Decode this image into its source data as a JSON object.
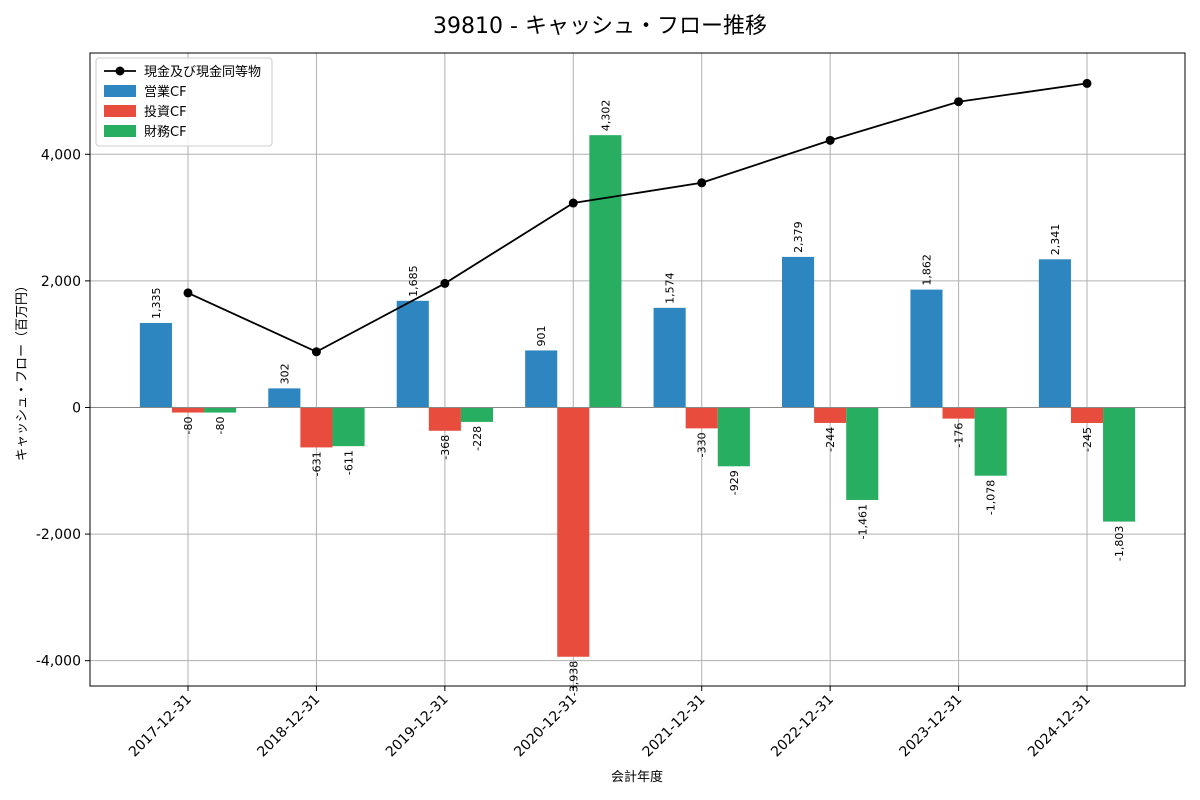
{
  "chart_data": {
    "type": "bar",
    "title": "39810 - キャッシュ・フロー推移",
    "xlabel": "会計年度",
    "ylabel": "キャッシュ・フロー（百万円）",
    "categories": [
      "2017-12-31",
      "2018-12-31",
      "2019-12-31",
      "2020-12-31",
      "2021-12-31",
      "2022-12-31",
      "2023-12-31",
      "2024-12-31"
    ],
    "ylim": [
      -4400,
      5600
    ],
    "yticks": [
      -4000,
      -2000,
      0,
      2000,
      4000
    ],
    "ytick_labels": [
      "-4,000",
      "-2,000",
      "0",
      "2,000",
      "4,000"
    ],
    "grid": true,
    "legend_position": "top-left",
    "series": [
      {
        "name": "営業CF",
        "kind": "bar",
        "color": "#2e86c1",
        "values": [
          1335,
          302,
          1685,
          901,
          1574,
          2379,
          1862,
          2341
        ],
        "labels": [
          "1,335",
          "302",
          "1,685",
          "901",
          "1,574",
          "2,379",
          "1,862",
          "2,341"
        ]
      },
      {
        "name": "投資CF",
        "kind": "bar",
        "color": "#e74c3c",
        "values": [
          -80,
          -631,
          -368,
          -3938,
          -330,
          -244,
          -176,
          -245
        ],
        "labels": [
          "-80",
          "-631",
          "-368",
          "-3,938",
          "-330",
          "-244",
          "-176",
          "-245"
        ]
      },
      {
        "name": "財務CF",
        "kind": "bar",
        "color": "#27ae60",
        "values": [
          -80,
          -611,
          -228,
          4302,
          -929,
          -1461,
          -1078,
          -1803
        ],
        "labels": [
          "-80",
          "-611",
          "-228",
          "4,302",
          "-929",
          "-1,461",
          "-1,078",
          "-1,803"
        ]
      },
      {
        "name": "現金及び現金同等物",
        "kind": "line",
        "color": "#000000",
        "values": [
          1810,
          880,
          1960,
          3230,
          3550,
          4220,
          4830,
          5120
        ]
      }
    ]
  }
}
